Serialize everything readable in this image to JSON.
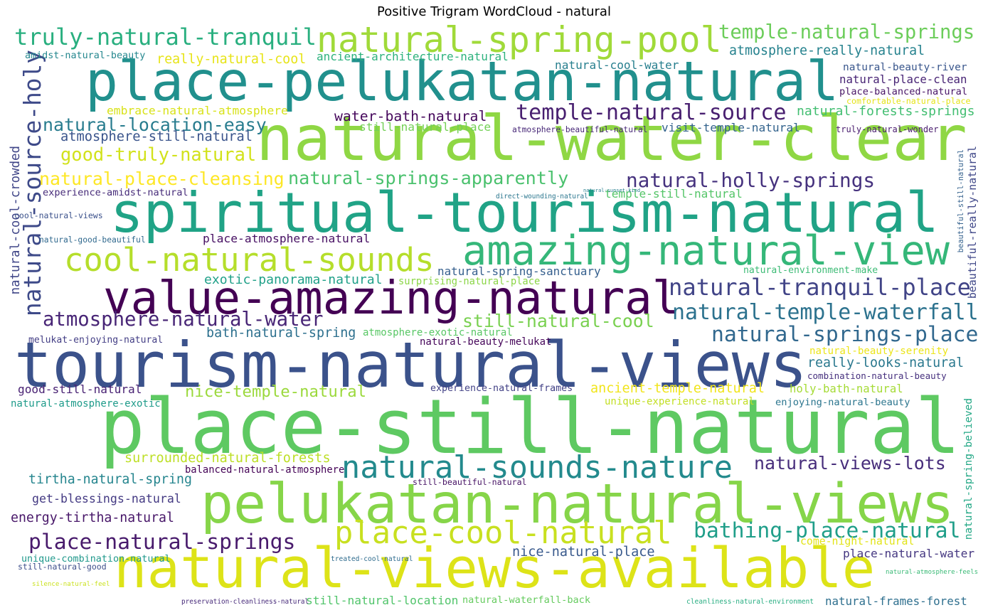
{
  "title": "Positive Trigram WordCloud - natural",
  "words": [
    {
      "text": "place-pelukatan-natural",
      "color": "#21908d"
    },
    {
      "text": "natural-water-clear",
      "color": "#8fd744"
    },
    {
      "text": "spiritual-tourism-natural",
      "color": "#20a386"
    },
    {
      "text": "tourism-natural-views",
      "color": "#3b528b"
    },
    {
      "text": "place-still-natural",
      "color": "#5ec962"
    },
    {
      "text": "pelukatan-natural-views",
      "color": "#86d549"
    },
    {
      "text": "natural-views-available",
      "color": "#dde318"
    },
    {
      "text": "value-amazing-natural",
      "color": "#440154"
    },
    {
      "text": "amazing-natural-view",
      "color": "#35b779"
    },
    {
      "text": "natural-spring-pool",
      "color": "#a0da39"
    },
    {
      "text": "cool-natural-sounds",
      "color": "#b5de2b"
    },
    {
      "text": "truly-natural-tranquil",
      "color": "#29af7f"
    },
    {
      "text": "natural-sounds-nature",
      "color": "#238a8d"
    },
    {
      "text": "place-cool-natural",
      "color": "#c8e020"
    },
    {
      "text": "natural-tranquil-place",
      "color": "#414487"
    },
    {
      "text": "natural-temple-waterfall",
      "color": "#2c728e"
    },
    {
      "text": "natural-springs-place",
      "color": "#31688e"
    },
    {
      "text": "bathing-place-natural",
      "color": "#1f9e89"
    },
    {
      "text": "natural-holly-springs",
      "color": "#46327e"
    },
    {
      "text": "temple-natural-source",
      "color": "#481f70"
    },
    {
      "text": "temple-natural-springs",
      "color": "#6ccd5a"
    },
    {
      "text": "atmosphere-natural-water",
      "color": "#482576"
    },
    {
      "text": "place-natural-springs",
      "color": "#481a6c"
    },
    {
      "text": "natural-source-holy",
      "color": "#3e4a89"
    },
    {
      "text": "natural-springs-apparently",
      "color": "#4ac16d"
    },
    {
      "text": "still-natural-cool",
      "color": "#7ad151"
    },
    {
      "text": "natural-place-cleansing",
      "color": "#fde725"
    },
    {
      "text": "natural-location-easy",
      "color": "#287c8e"
    },
    {
      "text": "good-truly-natural",
      "color": "#d2e21b"
    },
    {
      "text": "nice-temple-natural",
      "color": "#9bd93c"
    },
    {
      "text": "atmosphere-really-natural",
      "color": "#26828e"
    },
    {
      "text": "natural-views-lots",
      "color": "#472d7b"
    },
    {
      "text": "natural-forests-springs",
      "color": "#42be71"
    },
    {
      "text": "natural-spring-believed",
      "color": "#22a785"
    },
    {
      "text": "really-looks-natural",
      "color": "#2a788e"
    },
    {
      "text": "tirtha-natural-spring",
      "color": "#25858e"
    },
    {
      "text": "energy-tirtha-natural",
      "color": "#481769"
    },
    {
      "text": "surrounded-natural-forests",
      "color": "#bddf26"
    },
    {
      "text": "holy-bath-natural",
      "color": "#a5db36"
    },
    {
      "text": "ancient-temple-natural",
      "color": "#f1e51d"
    },
    {
      "text": "really-natural-cool",
      "color": "#e7e419"
    },
    {
      "text": "get-blessings-natural",
      "color": "#443a83"
    },
    {
      "text": "atmosphere-still-natural",
      "color": "#3a548c"
    },
    {
      "text": "natural-cool-crowded",
      "color": "#404688"
    },
    {
      "text": "bath-natural-spring",
      "color": "#2d708e"
    },
    {
      "text": "exotic-panorama-natural",
      "color": "#1fa088"
    },
    {
      "text": "nice-natural-place",
      "color": "#38598c"
    },
    {
      "text": "place-natural-water",
      "color": "#453781"
    },
    {
      "text": "embrace-natural-atmosphere",
      "color": "#d8e219"
    },
    {
      "text": "ancient-architecture-natural",
      "color": "#2db27d"
    },
    {
      "text": "natural-place-clean",
      "color": "#482475"
    },
    {
      "text": "visit-temple-natural",
      "color": "#33638d"
    },
    {
      "text": "water-bath-natural",
      "color": "#46085c"
    },
    {
      "text": "natural-spring-sanctuary",
      "color": "#355f8d"
    },
    {
      "text": "place-atmosphere-natural",
      "color": "#471063"
    },
    {
      "text": "beautiful-really-natural",
      "color": "#3f4788"
    },
    {
      "text": "beautiful-still-natural",
      "color": "#34618d"
    },
    {
      "text": "come-night-natural",
      "color": "#e2e418"
    },
    {
      "text": "natural-frames-forest",
      "color": "#2e6f8e"
    },
    {
      "text": "still-natural-location",
      "color": "#50c46a"
    },
    {
      "text": "natural-waterfall-back",
      "color": "#65cb5e"
    },
    {
      "text": "good-still-natural",
      "color": "#482173"
    },
    {
      "text": "natural-beauty-river",
      "color": "#39568c"
    },
    {
      "text": "natural-cool-water",
      "color": "#277f8e"
    },
    {
      "text": "place-balanced-natural",
      "color": "#481467"
    },
    {
      "text": "natural-environment-make",
      "color": "#3cbb75"
    },
    {
      "text": "combination-natural-beauty",
      "color": "#46307e"
    },
    {
      "text": "enjoying-natural-beauty",
      "color": "#2b758e"
    },
    {
      "text": "unique-experience-natural",
      "color": "#c2df23"
    },
    {
      "text": "natural-beauty-serenity",
      "color": "#ece51b"
    },
    {
      "text": "natural-atmosphere-exotic",
      "color": "#1e9b8a"
    },
    {
      "text": "experience-natural-frames",
      "color": "#424186"
    },
    {
      "text": "still-natural-place",
      "color": "#73d056"
    },
    {
      "text": "surprising-natural-place",
      "color": "#8bd646"
    },
    {
      "text": "atmosphere-exotic-natural",
      "color": "#58c765"
    },
    {
      "text": "natural-beauty-melukat",
      "color": "#450559"
    },
    {
      "text": "melukat-enjoying-natural",
      "color": "#433e85"
    },
    {
      "text": "experience-amidst-natural",
      "color": "#472c7a"
    },
    {
      "text": "temple-still-natural",
      "color": "#54c568"
    },
    {
      "text": "amidst-natural-beauty",
      "color": "#24878e"
    },
    {
      "text": "balanced-natural-atmosphere",
      "color": "#440256"
    },
    {
      "text": "still-beautiful-natural",
      "color": "#471365"
    },
    {
      "text": "unique-combination-natural",
      "color": "#1f988b"
    },
    {
      "text": "still-natural-good",
      "color": "#3d4e8a"
    },
    {
      "text": "treated-cool-natural",
      "color": "#2f6c8e"
    },
    {
      "text": "natural-atmosphere-feels",
      "color": "#3aba76"
    },
    {
      "text": "silence-natural-feel",
      "color": "#cae11f"
    },
    {
      "text": "preservation-cleanliness-natural",
      "color": "#472a7a"
    },
    {
      "text": "cleanliness-natural-environment",
      "color": "#27ad81"
    },
    {
      "text": "comfortable-natural-place",
      "color": "#e5e419"
    },
    {
      "text": "truly-natural-wonder",
      "color": "#481b6d"
    },
    {
      "text": "atmosphere-beautiful-natural",
      "color": "#482878"
    },
    {
      "text": "direct-wounding-natural",
      "color": "#2a768e"
    },
    {
      "text": "cool-natural-views",
      "color": "#3b518b"
    },
    {
      "text": "natural-good-beautiful",
      "color": "#30698e"
    },
    {
      "text": "natural-sunset-kind",
      "color": "#277e8e"
    }
  ]
}
